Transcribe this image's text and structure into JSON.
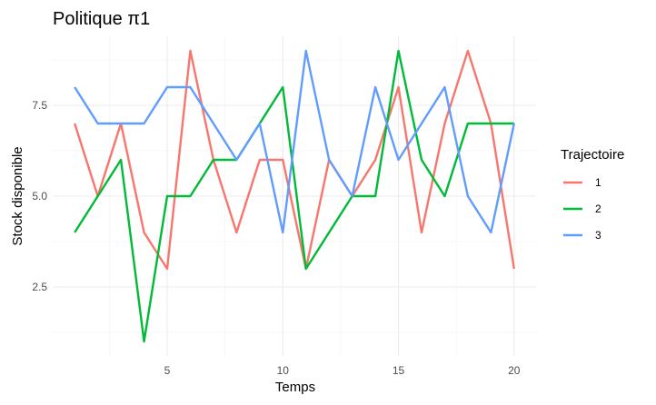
{
  "chart_data": {
    "type": "line",
    "title": "Politique π1",
    "xlabel": "Temps",
    "ylabel": "Stock disponible",
    "x": [
      1,
      2,
      3,
      4,
      5,
      6,
      7,
      8,
      9,
      10,
      11,
      12,
      13,
      14,
      15,
      16,
      17,
      18,
      19,
      20
    ],
    "xlim": [
      0.05,
      20.95
    ],
    "ylim": [
      0.6,
      9.4
    ],
    "x_ticks": [
      5,
      10,
      15,
      20
    ],
    "x_tick_labels": [
      "5",
      "10",
      "15",
      "20"
    ],
    "y_ticks": [
      2.5,
      5.0,
      7.5
    ],
    "y_tick_labels": [
      "2.5",
      "5.0",
      "7.5"
    ],
    "grid": true,
    "legend": {
      "title": "Trajectoire",
      "position": "right"
    },
    "series": [
      {
        "name": "1",
        "color": "#F8766D",
        "values": [
          7,
          5,
          7,
          4,
          3,
          9,
          6,
          4,
          6,
          6,
          3,
          6,
          5,
          6,
          8,
          4,
          7,
          9,
          7,
          3
        ]
      },
      {
        "name": "2",
        "color": "#00BA38",
        "values": [
          4,
          5,
          6,
          1,
          5,
          5,
          6,
          6,
          7,
          8,
          3,
          4,
          5,
          5,
          9,
          6,
          5,
          7,
          7,
          7
        ]
      },
      {
        "name": "3",
        "color": "#619CFF",
        "values": [
          8,
          7,
          7,
          7,
          8,
          8,
          7,
          6,
          7,
          4,
          9,
          6,
          5,
          8,
          6,
          7,
          8,
          5,
          4,
          7
        ]
      }
    ]
  }
}
